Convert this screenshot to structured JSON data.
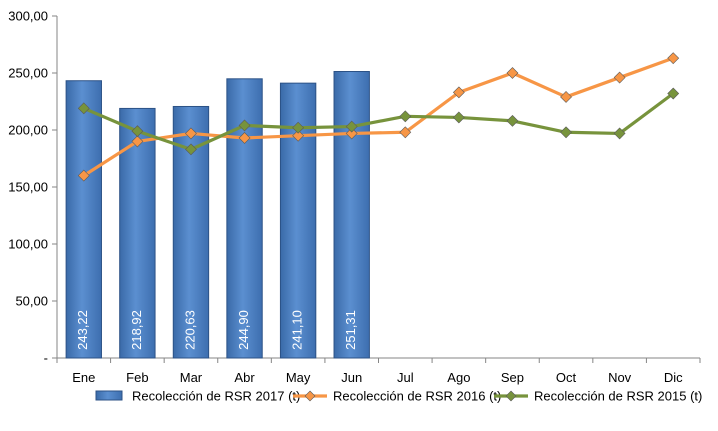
{
  "chart_data": {
    "type": "bar",
    "categories": [
      "Ene",
      "Feb",
      "Mar",
      "Abr",
      "May",
      "Jun",
      "Jul",
      "Ago",
      "Sep",
      "Oct",
      "Nov",
      "Dic"
    ],
    "ylim": [
      0,
      300
    ],
    "yticks": [
      0,
      50,
      100,
      150,
      200,
      250,
      300
    ],
    "ytick_labels": [
      "-",
      "50,00",
      "100,00",
      "150,00",
      "200,00",
      "250,00",
      "300,00"
    ],
    "grid": false,
    "legend_position": "bottom",
    "series": [
      {
        "name": "Recolección de RSR 2017 (t)",
        "type": "bar",
        "color": "#4F81BD",
        "values": [
          243.22,
          218.92,
          220.63,
          244.9,
          241.1,
          251.31,
          null,
          null,
          null,
          null,
          null,
          null
        ],
        "labels": [
          "243,22",
          "218,92",
          "220,63",
          "244,90",
          "241,10",
          "251,31"
        ]
      },
      {
        "name": "Recolección de RSR 2016 (t)",
        "type": "line",
        "color": "#F79646",
        "values": [
          160,
          190,
          197,
          193,
          195,
          197,
          198,
          233,
          250,
          229,
          246,
          263
        ]
      },
      {
        "name": "Recolección de RSR 2015 (t)",
        "type": "line",
        "color": "#77933C",
        "values": [
          219,
          199,
          183,
          204,
          202,
          203,
          212,
          211,
          208,
          198,
          197,
          232
        ]
      }
    ]
  }
}
